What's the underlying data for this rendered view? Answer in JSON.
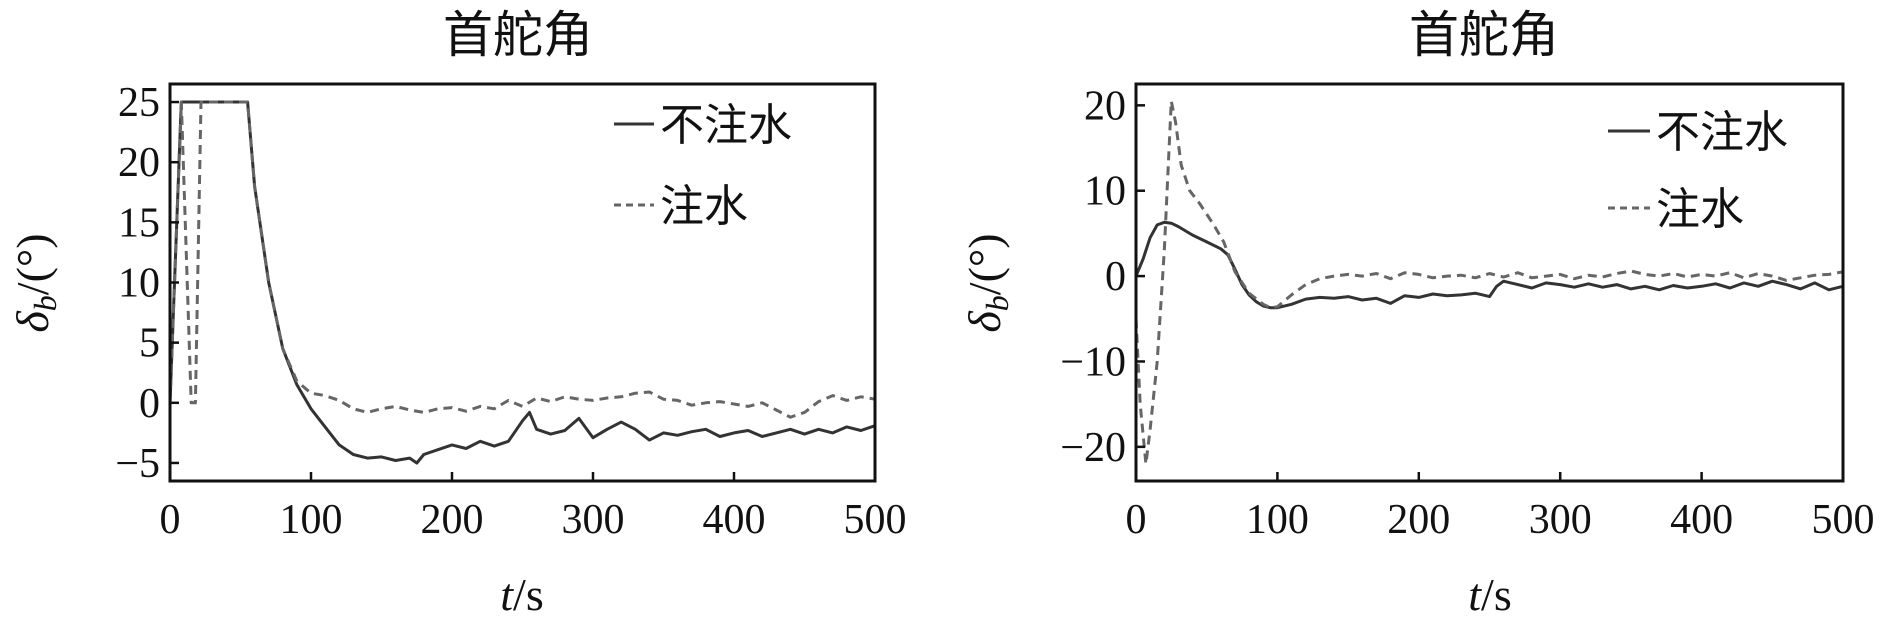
{
  "chart_data": [
    {
      "type": "line",
      "title": "首舵角",
      "xlabel": {
        "italic": "t",
        "rest": "/s"
      },
      "ylabel": {
        "symbol": "δ",
        "sub": "b",
        "rest": "/(°)"
      },
      "xlim": [
        0,
        500
      ],
      "ylim": [
        -6.5,
        26.5
      ],
      "xticks": [
        0,
        100,
        200,
        300,
        400,
        500
      ],
      "yticks": [
        -5,
        0,
        5,
        10,
        15,
        20,
        25
      ],
      "ytick_labels": [
        "−5",
        "0",
        "5",
        "10",
        "15",
        "20",
        "25"
      ],
      "grid": false,
      "legend_position": "top-right",
      "series": [
        {
          "name": "不注水",
          "style": "solid",
          "color": "#333333",
          "x": [
            0,
            8,
            10,
            55,
            60,
            70,
            80,
            90,
            100,
            110,
            120,
            130,
            140,
            150,
            160,
            170,
            175,
            180,
            190,
            200,
            210,
            220,
            230,
            240,
            250,
            255,
            260,
            270,
            280,
            290,
            300,
            310,
            320,
            330,
            340,
            350,
            360,
            370,
            380,
            390,
            400,
            410,
            420,
            430,
            440,
            450,
            460,
            470,
            480,
            490,
            500
          ],
          "y": [
            0,
            25,
            25,
            25,
            18,
            10,
            4.5,
            1.5,
            -0.5,
            -2,
            -3.5,
            -4.3,
            -4.6,
            -4.5,
            -4.8,
            -4.6,
            -5,
            -4.3,
            -3.9,
            -3.5,
            -3.8,
            -3.2,
            -3.6,
            -3.2,
            -1.5,
            -0.8,
            -2.2,
            -2.6,
            -2.3,
            -1.3,
            -2.9,
            -2.2,
            -1.6,
            -2.2,
            -3.1,
            -2.5,
            -2.7,
            -2.4,
            -2.2,
            -2.8,
            -2.5,
            -2.3,
            -2.8,
            -2.5,
            -2.2,
            -2.6,
            -2.2,
            -2.5,
            -2.0,
            -2.3,
            -1.9
          ]
        },
        {
          "name": "注水",
          "style": "dashed",
          "color": "#666666",
          "x": [
            0,
            8,
            15,
            18,
            22,
            55,
            60,
            70,
            80,
            90,
            100,
            110,
            120,
            130,
            140,
            150,
            160,
            170,
            180,
            190,
            200,
            210,
            220,
            230,
            240,
            250,
            260,
            270,
            280,
            290,
            300,
            310,
            320,
            330,
            340,
            350,
            360,
            370,
            380,
            390,
            400,
            410,
            420,
            430,
            440,
            450,
            460,
            470,
            480,
            490,
            500
          ],
          "y": [
            0,
            25,
            0,
            0,
            25,
            25,
            18,
            10,
            4.5,
            1.8,
            0.8,
            0.6,
            0.2,
            -0.5,
            -0.8,
            -0.5,
            -0.3,
            -0.6,
            -0.8,
            -0.5,
            -0.4,
            -0.7,
            -0.3,
            -0.5,
            0.2,
            -0.3,
            0.4,
            0.1,
            0.5,
            0.3,
            0.2,
            0.4,
            0.5,
            0.8,
            0.9,
            0.3,
            0.2,
            -0.2,
            0.0,
            0.1,
            -0.1,
            -0.3,
            0.0,
            -0.6,
            -1.2,
            -0.8,
            0.1,
            0.6,
            0.2,
            0.5,
            0.3
          ]
        }
      ]
    },
    {
      "type": "line",
      "title": "首舵角",
      "xlabel": {
        "italic": "t",
        "rest": "/s"
      },
      "ylabel": {
        "symbol": "δ",
        "sub": "b",
        "rest": "/(°)"
      },
      "xlim": [
        0,
        500
      ],
      "ylim": [
        -24,
        22.5
      ],
      "xticks": [
        0,
        100,
        200,
        300,
        400,
        500
      ],
      "yticks": [
        -20,
        -10,
        0,
        10,
        20
      ],
      "ytick_labels": [
        "−20",
        "−10",
        "0",
        "10",
        "20"
      ],
      "grid": false,
      "legend_position": "top-right",
      "series": [
        {
          "name": "不注水",
          "style": "solid",
          "color": "#333333",
          "x": [
            0,
            5,
            10,
            15,
            20,
            25,
            30,
            40,
            50,
            60,
            65,
            70,
            75,
            80,
            85,
            90,
            95,
            100,
            110,
            120,
            130,
            140,
            150,
            160,
            170,
            180,
            190,
            200,
            210,
            220,
            230,
            240,
            250,
            255,
            260,
            270,
            280,
            290,
            300,
            310,
            320,
            330,
            340,
            350,
            360,
            370,
            380,
            390,
            400,
            410,
            420,
            430,
            440,
            450,
            460,
            470,
            480,
            490,
            500
          ],
          "y": [
            0,
            2,
            4.5,
            6,
            6.3,
            6.2,
            5.8,
            4.8,
            4.0,
            3.2,
            2.5,
            0.8,
            -1.0,
            -2.2,
            -3.0,
            -3.5,
            -3.7,
            -3.7,
            -3.3,
            -2.7,
            -2.5,
            -2.6,
            -2.4,
            -2.8,
            -2.6,
            -3.2,
            -2.3,
            -2.5,
            -2.1,
            -2.3,
            -2.2,
            -2.0,
            -2.4,
            -1.2,
            -0.6,
            -1.0,
            -1.4,
            -0.8,
            -1.0,
            -1.3,
            -0.9,
            -1.3,
            -1.0,
            -1.5,
            -1.2,
            -1.6,
            -1.1,
            -1.4,
            -1.2,
            -0.9,
            -1.4,
            -0.8,
            -1.2,
            -0.6,
            -1.0,
            -1.5,
            -0.8,
            -1.6,
            -1.2
          ]
        },
        {
          "name": "注水",
          "style": "dashed",
          "color": "#666666",
          "x": [
            0,
            3,
            7,
            10,
            15,
            20,
            25,
            28,
            32,
            38,
            45,
            55,
            62,
            70,
            80,
            90,
            95,
            100,
            110,
            120,
            130,
            140,
            150,
            160,
            170,
            180,
            190,
            200,
            210,
            220,
            230,
            240,
            250,
            260,
            270,
            280,
            290,
            300,
            310,
            320,
            330,
            340,
            350,
            360,
            370,
            380,
            390,
            400,
            410,
            420,
            430,
            440,
            450,
            460,
            470,
            480,
            490,
            500
          ],
          "y": [
            -5,
            -15,
            -22,
            -18,
            -10,
            3,
            20.5,
            18,
            13,
            10,
            8.5,
            6,
            4,
            0.5,
            -2,
            -3.3,
            -3.7,
            -3.6,
            -2.2,
            -1.0,
            -0.3,
            0.0,
            0.2,
            0.0,
            0.3,
            -0.3,
            0.4,
            0.2,
            -0.2,
            0.0,
            0.1,
            -0.2,
            0.3,
            -0.1,
            0.4,
            -0.2,
            0.0,
            0.2,
            -0.3,
            0.1,
            -0.1,
            0.3,
            0.6,
            0.2,
            0.0,
            0.3,
            -0.1,
            0.2,
            0.0,
            0.4,
            -0.2,
            0.3,
            0.0,
            -0.5,
            -0.2,
            0.1,
            0.2,
            0.5
          ]
        }
      ]
    }
  ]
}
